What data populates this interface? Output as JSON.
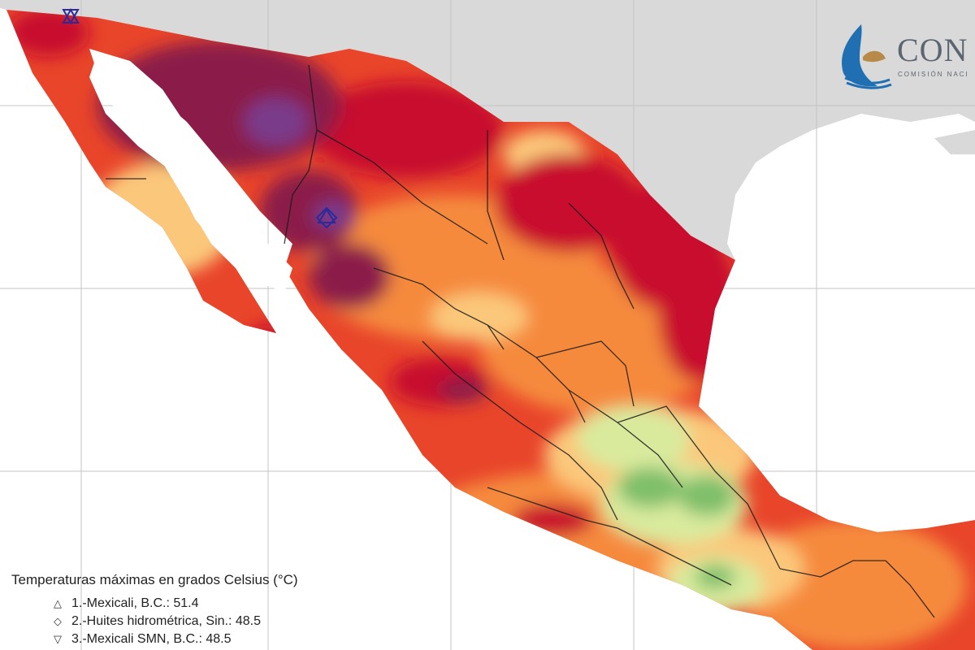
{
  "logo": {
    "text": "CON",
    "subtitle": "COMISIÓN NACI"
  },
  "legend": {
    "title": "Temperaturas máximas en grados Celsius (°C)",
    "items": [
      {
        "symbol": "△",
        "label": "1.-Mexicali, B.C.: 51.4"
      },
      {
        "symbol": "◇",
        "label": "2.-Huites hidrométrica, Sin.: 48.5"
      },
      {
        "symbol": "▽",
        "label": "3.-Mexicali SMN, B.C.: 48.5"
      }
    ]
  },
  "colors": {
    "ocean": "#ffffff",
    "land_outside": "#d9d9d9",
    "extreme": "#8b1a4a",
    "very_hot": "#c8102e",
    "hot": "#e8452a",
    "warm": "#f58a3c",
    "mild": "#fbc77a",
    "cool": "#d9ea9d",
    "cooler": "#7fbf6b",
    "marker": "#2a2a9a"
  }
}
